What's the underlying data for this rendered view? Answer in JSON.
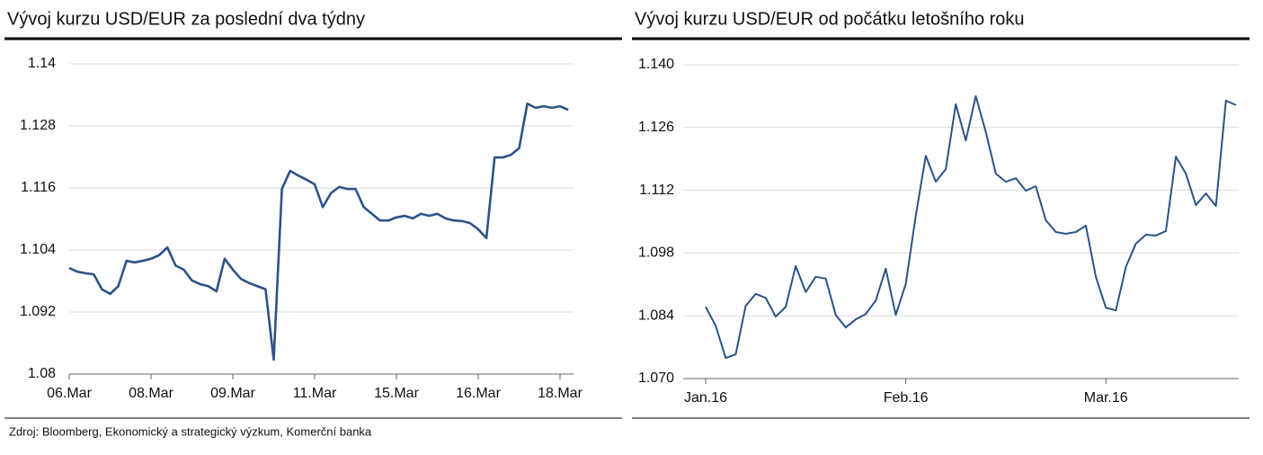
{
  "chart_data": [
    {
      "type": "line",
      "title": "Vývoj kurzu USD/EUR za poslední dva týdny",
      "categories": [
        "06.Mar",
        null,
        null,
        null,
        null,
        null,
        null,
        null,
        null,
        null,
        "08.Mar",
        null,
        null,
        null,
        null,
        null,
        null,
        null,
        null,
        null,
        "09.Mar",
        null,
        null,
        null,
        null,
        null,
        null,
        null,
        null,
        null,
        "11.Mar",
        null,
        null,
        null,
        null,
        null,
        null,
        null,
        null,
        null,
        "15.Mar",
        null,
        null,
        null,
        null,
        null,
        null,
        null,
        null,
        null,
        "16.Mar",
        null,
        null,
        null,
        null,
        null,
        null,
        null,
        null,
        null,
        "18.Mar",
        null
      ],
      "series": [
        {
          "name": "USD/EUR",
          "color": "#2b5388",
          "values": [
            1.1005,
            1.0998,
            1.0995,
            1.0993,
            1.0964,
            1.0955,
            1.097,
            1.1019,
            1.1016,
            1.1019,
            1.1023,
            1.103,
            1.1045,
            1.101,
            1.1002,
            1.0981,
            1.0974,
            1.097,
            1.096,
            1.1023,
            1.1002,
            1.0984,
            1.0976,
            1.097,
            1.0964,
            1.0828,
            1.1158,
            1.1193,
            1.1184,
            1.1176,
            1.1167,
            1.1123,
            1.115,
            1.1162,
            1.1158,
            1.1158,
            1.1123,
            1.111,
            1.1097,
            1.1097,
            1.1103,
            1.1106,
            1.1101,
            1.111,
            1.1106,
            1.111,
            1.1101,
            1.1097,
            1.1096,
            1.1092,
            1.108,
            1.1063,
            1.1219,
            1.1219,
            1.1224,
            1.1237,
            1.1323,
            1.1315,
            1.1318,
            1.1315,
            1.1318,
            1.1311
          ]
        }
      ],
      "ylim": [
        1.08,
        1.14
      ],
      "yticks": [
        1.08,
        1.092,
        1.104,
        1.116,
        1.128,
        1.14
      ],
      "grid": true
    },
    {
      "type": "line",
      "title": "Vývoj kurzu USD/EUR od počátku letošního roku",
      "categories": [
        "Jan.16",
        null,
        null,
        null,
        null,
        null,
        null,
        null,
        null,
        null,
        null,
        null,
        null,
        null,
        null,
        null,
        null,
        null,
        null,
        null,
        "Feb.16",
        null,
        null,
        null,
        null,
        null,
        null,
        null,
        null,
        null,
        null,
        null,
        null,
        null,
        null,
        null,
        null,
        null,
        null,
        null,
        "Mar.16",
        null,
        null,
        null,
        null,
        null,
        null,
        null,
        null,
        null,
        null,
        null,
        null,
        null
      ],
      "series": [
        {
          "name": "USD/EUR",
          "color": "#2b5388",
          "values": [
            1.086,
            1.0818,
            1.0746,
            1.0754,
            1.0862,
            1.0889,
            1.088,
            1.0838,
            1.086,
            1.0951,
            1.0893,
            1.0927,
            1.0923,
            1.0842,
            1.0814,
            1.0832,
            1.0844,
            1.0874,
            1.0945,
            1.0842,
            1.0911,
            1.1063,
            1.1197,
            1.1139,
            1.1167,
            1.1312,
            1.1231,
            1.133,
            1.125,
            1.1157,
            1.1139,
            1.1147,
            1.1119,
            1.1129,
            1.1053,
            1.1027,
            1.1023,
            1.1027,
            1.1041,
            1.0927,
            1.0858,
            1.0852,
            1.0949,
            1.1001,
            1.1021,
            1.1019,
            1.1029,
            1.1195,
            1.1157,
            1.1087,
            1.1113,
            1.1085,
            1.132,
            1.131
          ]
        }
      ],
      "ylim": [
        1.07,
        1.14
      ],
      "yticks": [
        {
          "value": 1.07,
          "label": "1.070"
        },
        1.084,
        1.098,
        1.112,
        1.126,
        {
          "value": 1.14,
          "label": "1.140"
        }
      ],
      "grid": true
    }
  ],
  "source": "Zdroj: Bloomberg, Ekonomický a strategický výzkum, Komerční banka"
}
